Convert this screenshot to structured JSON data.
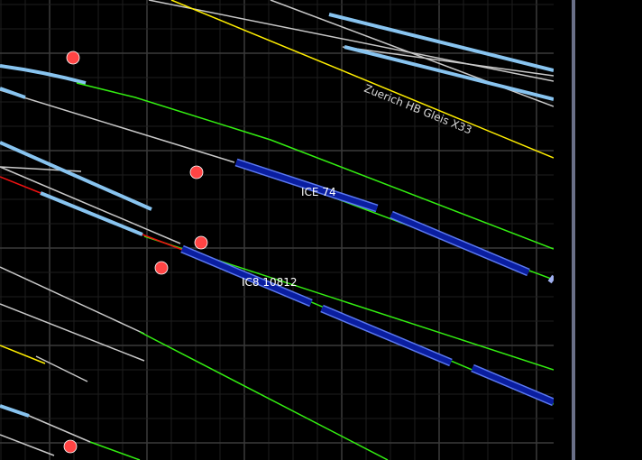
{
  "map": {
    "station_label": "Zuerich HB Gleis X33",
    "trains": [
      {
        "name": "ICE 74"
      },
      {
        "name": "IC8 10812"
      }
    ],
    "colors": {
      "background": "#000000",
      "grid_minor": "#1e1e1e",
      "grid_major": "#3a3a3a",
      "track_free": "#c8c8c8",
      "track_reserved": "#33ee11",
      "track_occupied": "#ee1111",
      "track_platform": "#ffee00",
      "track_route": "#88c4f0",
      "train_body": "#0a1ea0",
      "train_edge": "#5a78f0",
      "signal": "#ff4444",
      "scrollbar": "#6a7088"
    }
  }
}
